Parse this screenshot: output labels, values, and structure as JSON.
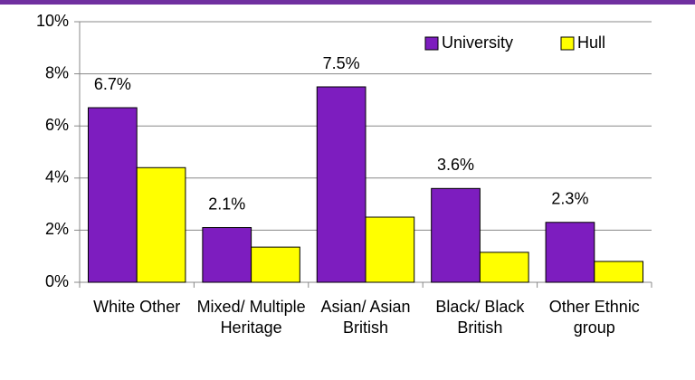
{
  "chart_data": {
    "type": "bar",
    "categories": [
      "White Other",
      "Mixed/ Multiple Heritage",
      "Asian/ Asian British",
      "Black/ Black British",
      "Other Ethnic group"
    ],
    "series": [
      {
        "name": "University",
        "color": "#7d1dbf",
        "values": [
          6.7,
          2.1,
          7.5,
          3.6,
          2.3
        ],
        "value_labels": [
          "6.7%",
          "2.1%",
          "7.5%",
          "3.6%",
          "2.3%"
        ]
      },
      {
        "name": "Hull",
        "color": "#ffff00",
        "values": [
          4.4,
          1.35,
          2.5,
          1.15,
          0.8
        ]
      }
    ],
    "ylim": [
      0,
      10
    ],
    "yticks": [
      {
        "value": 0,
        "label": "0%"
      },
      {
        "value": 2,
        "label": "2%"
      },
      {
        "value": 4,
        "label": "4%"
      },
      {
        "value": 6,
        "label": "6%"
      },
      {
        "value": 8,
        "label": "8%"
      },
      {
        "value": 10,
        "label": "10%"
      }
    ],
    "grid": true,
    "legend": "top-right"
  }
}
